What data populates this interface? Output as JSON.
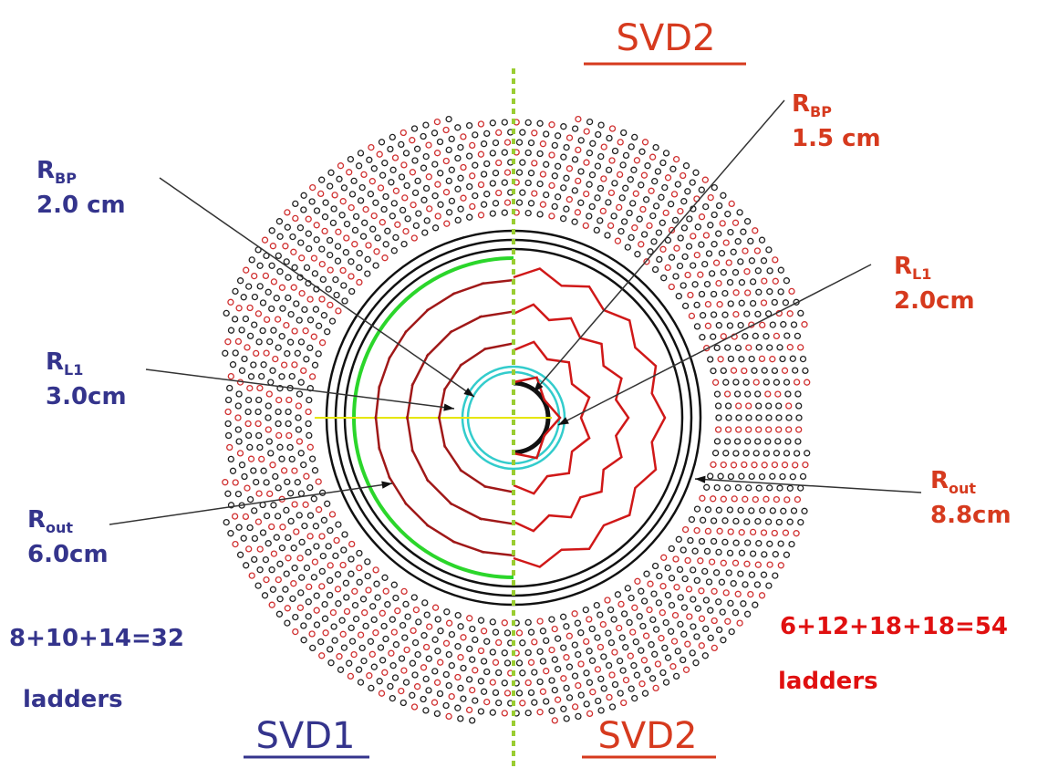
{
  "top_title": "SVD2",
  "left": {
    "labels": [
      {
        "symbol": "R",
        "subscript": "BP",
        "value": "2.0 cm"
      },
      {
        "symbol": "R",
        "subscript": "L1",
        "value": "3.0cm"
      },
      {
        "symbol": "R",
        "subscript": "out",
        "value": "6.0cm"
      }
    ],
    "ladders_sum": "8+10+14=32",
    "ladders_word": "ladders",
    "name": "SVD1"
  },
  "right": {
    "labels": [
      {
        "symbol": "R",
        "subscript": "BP",
        "value": "1.5 cm"
      },
      {
        "symbol": "R",
        "subscript": "L1",
        "value": "2.0cm"
      },
      {
        "symbol": "R",
        "subscript": "out",
        "value": "8.8cm"
      }
    ],
    "ladders_sum": "6+12+18+18=54",
    "ladders_word": "ladders",
    "name": "SVD2"
  }
}
